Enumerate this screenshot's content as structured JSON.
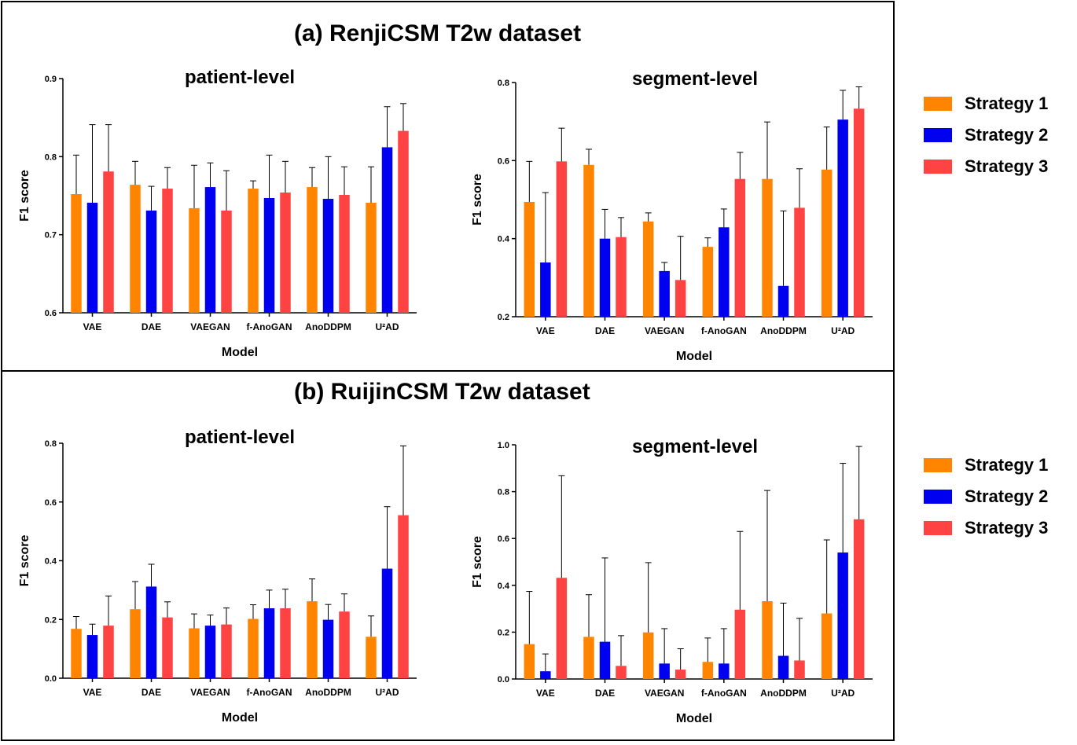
{
  "panels": [
    {
      "title": "(a) RenjiCSM T2w dataset"
    },
    {
      "title": "(b) RuijinCSM T2w dataset"
    }
  ],
  "colors": {
    "Strategy 1": "#FF8500",
    "Strategy 2": "#0000F0",
    "Strategy 3": "#FF4242"
  },
  "legend": {
    "items": [
      "Strategy 1",
      "Strategy 2",
      "Strategy 3"
    ]
  },
  "chart_data": [
    {
      "type": "bar",
      "title": "patient-level",
      "xlabel": "Model",
      "ylabel": "F1 score",
      "categories": [
        "VAE",
        "DAE",
        "VAEGAN",
        "f-AnoGAN",
        "AnoDDPM",
        "U²AD"
      ],
      "ylim": [
        0.6,
        0.9
      ],
      "yticks": [
        "0.6",
        "0.7",
        "0.8",
        "0.9"
      ],
      "series": [
        {
          "name": "Strategy 1",
          "values": [
            0.752,
            0.764,
            0.734,
            0.759,
            0.761,
            0.741
          ],
          "errors": [
            0.05,
            0.03,
            0.055,
            0.01,
            0.025,
            0.046
          ]
        },
        {
          "name": "Strategy 2",
          "values": [
            0.741,
            0.731,
            0.761,
            0.747,
            0.746,
            0.812
          ],
          "errors": [
            0.1,
            0.031,
            0.031,
            0.055,
            0.054,
            0.052
          ]
        },
        {
          "name": "Strategy 3",
          "values": [
            0.781,
            0.759,
            0.731,
            0.754,
            0.751,
            0.833
          ],
          "errors": [
            0.06,
            0.027,
            0.051,
            0.04,
            0.036,
            0.035
          ]
        }
      ]
    },
    {
      "type": "bar",
      "title": "segment-level",
      "xlabel": "Model",
      "ylabel": "F1 score",
      "categories": [
        "VAE",
        "DAE",
        "VAEGAN",
        "f-AnoGAN",
        "AnoDDPM",
        "U²AD"
      ],
      "ylim": [
        0.2,
        0.8
      ],
      "yticks": [
        "0.2",
        "0.4",
        "0.6",
        "0.8"
      ],
      "series": [
        {
          "name": "Strategy 1",
          "values": [
            0.494,
            0.589,
            0.444,
            0.379,
            0.553,
            0.577
          ],
          "errors": [
            0.104,
            0.04,
            0.022,
            0.023,
            0.146,
            0.109
          ]
        },
        {
          "name": "Strategy 2",
          "values": [
            0.339,
            0.4,
            0.317,
            0.429,
            0.279,
            0.705
          ],
          "errors": [
            0.179,
            0.075,
            0.022,
            0.047,
            0.192,
            0.075
          ]
        },
        {
          "name": "Strategy 3",
          "values": [
            0.598,
            0.404,
            0.294,
            0.553,
            0.479,
            0.733
          ],
          "errors": [
            0.085,
            0.05,
            0.112,
            0.068,
            0.1,
            0.056
          ]
        }
      ]
    },
    {
      "type": "bar",
      "title": "patient-level",
      "xlabel": "Model",
      "ylabel": "F1 score",
      "categories": [
        "VAE",
        "DAE",
        "VAEGAN",
        "f-AnoGAN",
        "AnoDDPM",
        "U²AD"
      ],
      "ylim": [
        0.0,
        0.8
      ],
      "yticks": [
        "0.0",
        "0.2",
        "0.4",
        "0.6",
        "0.8"
      ],
      "series": [
        {
          "name": "Strategy 1",
          "values": [
            0.168,
            0.235,
            0.17,
            0.202,
            0.262,
            0.141
          ],
          "errors": [
            0.042,
            0.094,
            0.049,
            0.048,
            0.076,
            0.071
          ]
        },
        {
          "name": "Strategy 2",
          "values": [
            0.147,
            0.312,
            0.179,
            0.238,
            0.199,
            0.373
          ],
          "errors": [
            0.037,
            0.076,
            0.036,
            0.062,
            0.052,
            0.211
          ]
        },
        {
          "name": "Strategy 3",
          "values": [
            0.179,
            0.207,
            0.183,
            0.238,
            0.227,
            0.555
          ],
          "errors": [
            0.101,
            0.053,
            0.056,
            0.065,
            0.06,
            0.236
          ]
        }
      ]
    },
    {
      "type": "bar",
      "title": "segment-level",
      "xlabel": "Model",
      "ylabel": "F1 score",
      "categories": [
        "VAE",
        "DAE",
        "VAEGAN",
        "f-AnoGAN",
        "AnoDDPM",
        "U²AD"
      ],
      "ylim": [
        0.0,
        1.0
      ],
      "yticks": [
        "0.0",
        "0.2",
        "0.4",
        "0.6",
        "0.8",
        "1.0"
      ],
      "series": [
        {
          "name": "Strategy 1",
          "values": [
            0.149,
            0.18,
            0.199,
            0.073,
            0.332,
            0.28
          ],
          "errors": [
            0.225,
            0.18,
            0.298,
            0.102,
            0.473,
            0.314
          ]
        },
        {
          "name": "Strategy 2",
          "values": [
            0.033,
            0.159,
            0.066,
            0.066,
            0.099,
            0.54
          ],
          "errors": [
            0.074,
            0.358,
            0.149,
            0.149,
            0.225,
            0.381
          ]
        },
        {
          "name": "Strategy 3",
          "values": [
            0.432,
            0.056,
            0.04,
            0.296,
            0.079,
            0.682
          ],
          "errors": [
            0.436,
            0.129,
            0.089,
            0.334,
            0.18,
            0.311
          ]
        }
      ]
    }
  ]
}
